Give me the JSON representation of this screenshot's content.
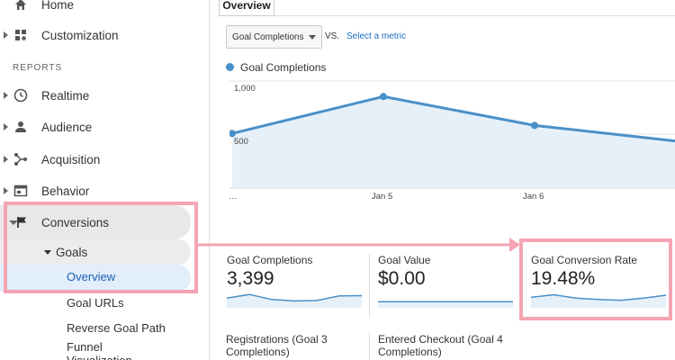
{
  "sidebar": {
    "home_label": "Home",
    "customization_label": "Customization",
    "section_reports": "REPORTS",
    "items": [
      {
        "label": "Realtime"
      },
      {
        "label": "Audience"
      },
      {
        "label": "Acquisition"
      },
      {
        "label": "Behavior"
      },
      {
        "label": "Conversions"
      }
    ],
    "goals_label": "Goals",
    "goals_sub": [
      {
        "label": "Overview"
      },
      {
        "label": "Goal URLs"
      },
      {
        "label": "Reverse Goal Path"
      },
      {
        "label": "Funnel Visualization"
      }
    ]
  },
  "main": {
    "tab_label": "Overview",
    "metric_select_value": "Goal Completions",
    "vs_label": "VS.",
    "select_metric_link": "Select a metric",
    "legend_label": "Goal Completions",
    "accent_color": "#4a90c8",
    "highlight_color": "#f4a4b2"
  },
  "chart_data": {
    "type": "line",
    "series": [
      {
        "name": "Goal Completions",
        "values": [
          510,
          855,
          585,
          440
        ]
      }
    ],
    "x": [
      "…",
      "Jan 5",
      "Jan 6",
      ""
    ],
    "y_ticks": [
      "1,000",
      "500"
    ],
    "ylim": [
      0,
      1000
    ]
  },
  "scorecards": [
    {
      "title": "Goal Completions",
      "value": "3,399",
      "spark": [
        0.55,
        0.8,
        0.45,
        0.35,
        0.38,
        0.7,
        0.72
      ]
    },
    {
      "title": "Goal Value",
      "value": "$0.00",
      "spark": [
        0.3,
        0.3,
        0.3,
        0.3,
        0.3,
        0.3,
        0.3
      ]
    },
    {
      "title": "Goal Conversion Rate",
      "value": "19.48%",
      "spark": [
        0.6,
        0.78,
        0.55,
        0.45,
        0.4,
        0.55,
        0.75
      ]
    }
  ],
  "scorecards_row2": [
    {
      "title": "Registrations (Goal 3 Completions)"
    },
    {
      "title": "Entered Checkout (Goal 4 Completions)"
    }
  ]
}
